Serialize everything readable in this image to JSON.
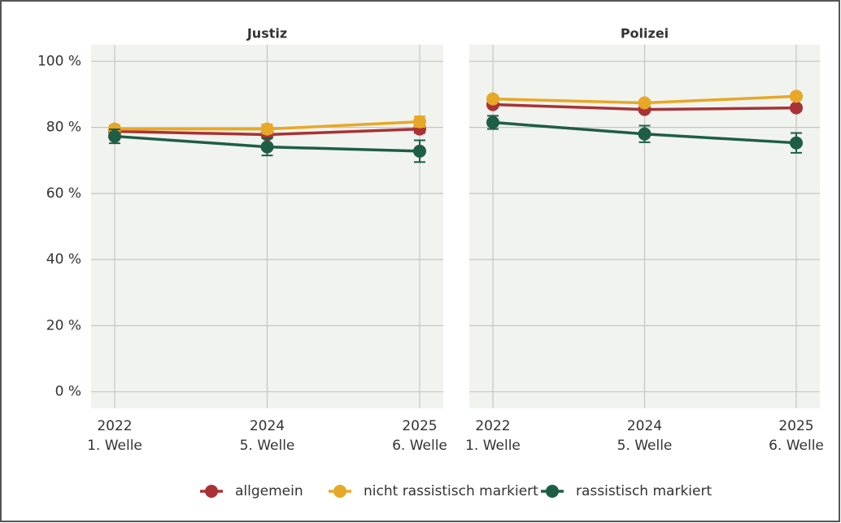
{
  "chart_data": [
    {
      "type": "line",
      "title": "Justiz",
      "categories": [
        "2022",
        "2024",
        "2025"
      ],
      "category_sublabels": [
        "1. Welle",
        "5. Welle",
        "6. Welle"
      ],
      "ylim": [
        -5,
        105
      ],
      "yticks": [
        {
          "value": 0,
          "label": "0 %"
        },
        {
          "value": 20,
          "label": "20 %"
        },
        {
          "value": 40,
          "label": "40 %"
        },
        {
          "value": 60,
          "label": "60 %"
        },
        {
          "value": 80,
          "label": "80 %"
        },
        {
          "value": 100,
          "label": "100 %"
        }
      ],
      "grid": true,
      "series": [
        {
          "name": "allgemein",
          "color": "#a83236",
          "values": [
            78.8,
            77.8,
            79.5
          ],
          "errors": [
            1.0,
            1.0,
            1.2
          ]
        },
        {
          "name": "nicht rassistisch markiert",
          "color": "#e6a826",
          "values": [
            79.5,
            79.5,
            81.7
          ],
          "errors": [
            1.2,
            1.4,
            1.6
          ]
        },
        {
          "name": "rassistisch markiert",
          "color": "#1e5e45",
          "values": [
            77.3,
            74.1,
            72.8
          ],
          "errors": [
            2.1,
            2.6,
            3.3
          ]
        }
      ]
    },
    {
      "type": "line",
      "title": "Polizei",
      "categories": [
        "2022",
        "2024",
        "2025"
      ],
      "category_sublabels": [
        "1. Welle",
        "5. Welle",
        "6. Welle"
      ],
      "ylim": [
        -5,
        105
      ],
      "yticks": [
        0,
        20,
        40,
        60,
        80,
        100
      ],
      "grid": true,
      "series": [
        {
          "name": "allgemein",
          "color": "#a83236",
          "values": [
            86.9,
            85.4,
            85.9
          ],
          "errors": [
            0.8,
            0.8,
            0.9
          ]
        },
        {
          "name": "nicht rassistisch markiert",
          "color": "#e6a826",
          "values": [
            88.6,
            87.4,
            89.4
          ],
          "errors": [
            0.8,
            0.9,
            1.0
          ]
        },
        {
          "name": "rassistisch markiert",
          "color": "#1e5e45",
          "values": [
            81.5,
            78.0,
            75.3
          ],
          "errors": [
            2.0,
            2.5,
            3.0
          ]
        }
      ]
    }
  ]
}
